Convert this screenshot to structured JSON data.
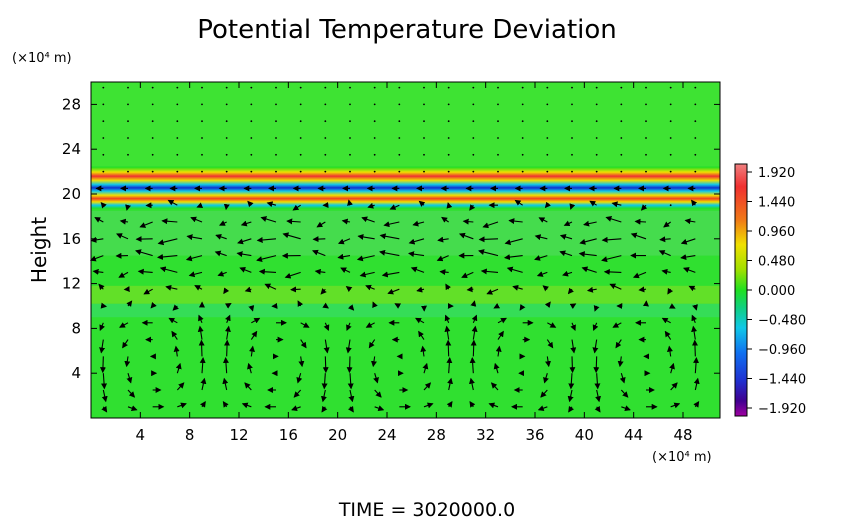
{
  "chart_data": {
    "type": "heatmap",
    "title": "Potential Temperature Deviation",
    "ylabel": "Height",
    "xlabel": "",
    "x_unit": "(×10⁴ m)",
    "y_unit": "(×10⁴ m)",
    "xlim": [
      0,
      51
    ],
    "ylim": [
      0,
      30
    ],
    "x_ticks": [
      "4",
      "8",
      "12",
      "16",
      "20",
      "24",
      "28",
      "32",
      "36",
      "40",
      "44",
      "48"
    ],
    "y_ticks": [
      "4",
      "8",
      "12",
      "16",
      "20",
      "24",
      "28"
    ],
    "colorbar": {
      "ticks": [
        "1.920",
        "1.440",
        "0.960",
        "0.480",
        "0.000",
        "−0.480",
        "−0.960",
        "−1.440",
        "−1.920"
      ],
      "range": [
        -1.92,
        1.92
      ],
      "colors": [
        "#f08080",
        "#f03030",
        "#f07818",
        "#f0e000",
        "#a0e000",
        "#20e020",
        "#10d080",
        "#10c8e8",
        "#1070f0",
        "#2030d0",
        "#400090",
        "#a000a0"
      ]
    },
    "background_color": "#30e030",
    "banded_features": [
      {
        "y_center": 20.7,
        "description": "strong alternating positive/negative bands"
      },
      {
        "y_center": 17.0,
        "description": "weak positive/negative perturbations"
      },
      {
        "y_center": 11.0,
        "description": "weak negative perturbations"
      }
    ],
    "vectors": "wind field arrows overlaid; circulation cells below y=10, shear layer near y=13-20"
  },
  "footer_text": "TIME  =  3020000.0"
}
